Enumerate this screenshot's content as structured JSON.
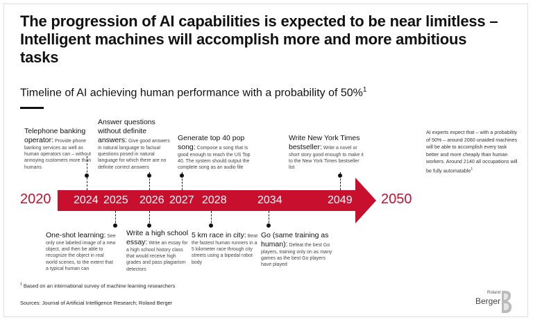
{
  "header": {
    "title": "The progression of AI capabilities is expected to be near limitless – Intelligent machines will accomplish more and more ambitious tasks",
    "subtitle": "Timeline of AI achieving human performance with a probability of 50%",
    "subtitle_sup": "1"
  },
  "timeline": {
    "start_year": "2020",
    "end_year": "2050",
    "years": [
      "2024",
      "2025",
      "2026",
      "2027",
      "2028",
      "2034",
      "2049"
    ],
    "arrow_color": "#c8102e"
  },
  "events": {
    "telephone": {
      "heading": "Telephone banking operator:",
      "body": "Provide phone banking services as well as human operators can – without annoying customers more than humans"
    },
    "questions": {
      "heading": "Answer questions without definite answers:",
      "body": "Give good answers in natural language to factual questions posed in natural language for which there are no definite correct answers"
    },
    "pop": {
      "heading": "Generate top 40 pop song:",
      "body": "Compose a song that is good enough to reach the US Top 40. The system should output the complete song as an audio file"
    },
    "nyt": {
      "heading": "Write New York Times bestseller:",
      "body": "Write a novel or short story good enough to make it to the New York Times bestseller list"
    },
    "oneshot": {
      "heading": "One-shot learning:",
      "body": "See only one labeled image of a new object, and then be able to recognize the object in real world scenes, to the extent that a typical human can"
    },
    "essay": {
      "heading": "Write a high school essay:",
      "body": "Write an essay for a high school history class that would receive high grades and pass plagiarism detectors"
    },
    "race": {
      "heading": "5 km race in city:",
      "body": "Beat the fastest human runners in a 5 kilometer race through city streets using a bipedal robot body"
    },
    "go": {
      "heading": "Go (same training as human):",
      "body": "Defeat the best Go players, training only on as many games as the best Go players have played"
    }
  },
  "side_note": {
    "text": "AI experts expect that – with a probability of 50% – around 2060 unaided machines will be able to accomplish every task better and more cheaply than human workers. Around 2140 all occupations will be fully automatable",
    "sup": "1"
  },
  "footnotes": {
    "note_mark": "1",
    "note": "Based on an international survey of machine learning researchers",
    "sources": "Sources: Journal of Artificial Intelligence Research; Roland Berger"
  },
  "logo": {
    "line1": "Roland",
    "line2": "Berger"
  }
}
